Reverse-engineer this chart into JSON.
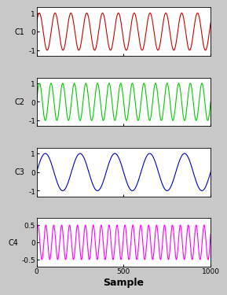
{
  "n_samples": 1001,
  "subplots": [
    {
      "label": "C1",
      "color": "#cc0000",
      "amplitude": 1.0,
      "frequency": 11,
      "phase": 0.5,
      "ylim": [
        -1.3,
        1.3
      ],
      "yticks": [
        -1,
        0,
        1
      ],
      "xlim": [
        0,
        1000
      ],
      "xticks": [
        0,
        500,
        1000
      ]
    },
    {
      "label": "C2",
      "color": "#00cc00",
      "amplitude": 1.0,
      "frequency": 15,
      "phase": 0.0,
      "ylim": [
        -1.3,
        1.3
      ],
      "yticks": [
        -1,
        0,
        1
      ],
      "xlim": [
        0,
        1000
      ],
      "xticks": [
        0,
        500,
        1000
      ]
    },
    {
      "label": "C3",
      "color": "#0000cc",
      "amplitude": 1.0,
      "frequency": 5,
      "phase": 0.0,
      "ylim": [
        -1.3,
        1.3
      ],
      "yticks": [
        -1,
        0,
        1
      ],
      "xlim": [
        0,
        1000
      ],
      "xticks": [
        0,
        500,
        1000
      ]
    },
    {
      "label": "C4",
      "color": "#ff00ff",
      "amplitude": 0.5,
      "frequency": 22,
      "phase": 0.5,
      "ylim": [
        -0.7,
        0.7
      ],
      "yticks": [
        -0.5,
        0,
        0.5
      ],
      "xlim": [
        0,
        1000
      ],
      "xticks": [
        0,
        500,
        1000
      ]
    }
  ],
  "xlabel": "Sample",
  "xlabel_fontsize": 9,
  "ylabel_fontsize": 7,
  "tick_fontsize": 6.5,
  "plot_bg": "#ffffff",
  "fig_bg": "#c8c8c8",
  "linewidth": 0.8
}
